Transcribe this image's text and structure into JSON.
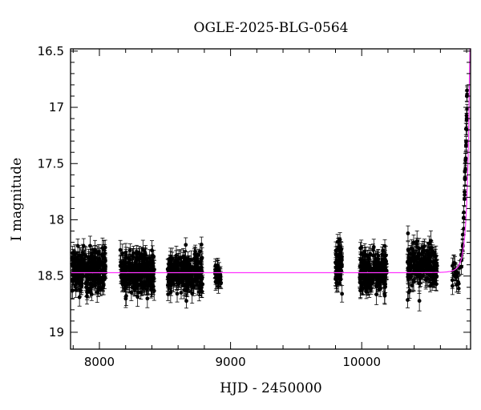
{
  "chart_data": {
    "type": "scatter",
    "title": "OGLE-2025-BLG-0564",
    "xlabel": "HJD - 2450000",
    "ylabel": "I magnitude",
    "xlim": [
      7780,
      10830
    ],
    "ylim": [
      19.15,
      16.48
    ],
    "y_inverted": true,
    "x_ticks": [
      8000,
      9000,
      10000
    ],
    "y_ticks": [
      16.5,
      17,
      17.5,
      18,
      18.5,
      19
    ],
    "y_tick_labels": [
      "16.5",
      "17",
      "17.5",
      "18",
      "18.5",
      "19"
    ],
    "x_tick_labels": [
      "8000",
      "9000",
      "10000"
    ],
    "baseline_mag": 18.47,
    "colors": {
      "data": "#000000",
      "model": "#ff33ff",
      "frame": "#000000"
    },
    "seasons": [
      {
        "start": 7790,
        "end": 8050,
        "mean": 18.45,
        "scatter": 0.09,
        "err": 0.07,
        "n": 260
      },
      {
        "start": 8155,
        "end": 8420,
        "mean": 18.46,
        "scatter": 0.09,
        "err": 0.07,
        "n": 260
      },
      {
        "start": 8520,
        "end": 8790,
        "mean": 18.47,
        "scatter": 0.09,
        "err": 0.07,
        "n": 260
      },
      {
        "start": 8880,
        "end": 8930,
        "mean": 18.5,
        "scatter": 0.07,
        "err": 0.06,
        "n": 30
      },
      {
        "start": 9800,
        "end": 9850,
        "mean": 18.42,
        "scatter": 0.1,
        "err": 0.07,
        "n": 70
      },
      {
        "start": 9985,
        "end": 10190,
        "mean": 18.46,
        "scatter": 0.09,
        "err": 0.07,
        "n": 200
      },
      {
        "start": 10345,
        "end": 10580,
        "mean": 18.42,
        "scatter": 0.09,
        "err": 0.07,
        "n": 200
      },
      {
        "start": 10690,
        "end": 10750,
        "mean": 18.48,
        "scatter": 0.06,
        "err": 0.06,
        "n": 20
      }
    ],
    "rise": {
      "t0": 10830,
      "tE": 45,
      "u0": 0.01,
      "points": [
        {
          "x": 10760,
          "y": 18.35
        },
        {
          "x": 10770,
          "y": 18.2
        },
        {
          "x": 10778,
          "y": 18.0
        },
        {
          "x": 10784,
          "y": 17.8
        },
        {
          "x": 10788,
          "y": 17.6
        },
        {
          "x": 10792,
          "y": 17.45
        },
        {
          "x": 10796,
          "y": 17.3
        },
        {
          "x": 10800,
          "y": 17.1
        },
        {
          "x": 10803,
          "y": 16.92
        }
      ]
    }
  }
}
